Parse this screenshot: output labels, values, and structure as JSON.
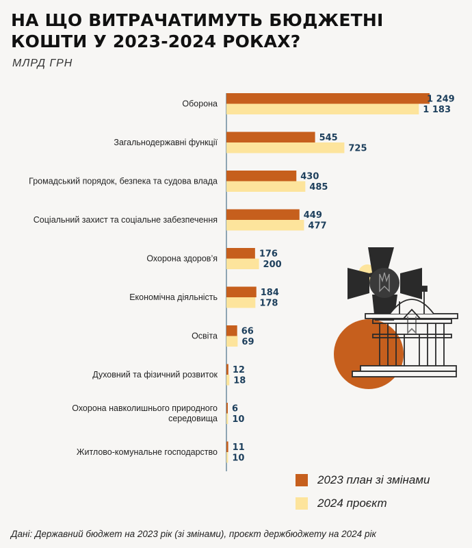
{
  "title": "НА ЩО ВИТРАЧАТИМУТЬ БЮДЖЕТНІ КОШТИ У 2023-2024 РОКАХ?",
  "subtitle": "МЛРД ГРН",
  "source": "Дані: Державний бюджет на 2023 рік (зі змінами), проєкт держбюджету на 2024 рік",
  "colors": {
    "series_2023": "#c65f1d",
    "series_2024": "#fde49c",
    "value_text": "#1d3f5c"
  },
  "illustration": {
    "icons": [
      "cross-emblem-icon",
      "trident-icon",
      "parliament-building-icon"
    ]
  },
  "chart_data": {
    "type": "bar",
    "orientation": "horizontal",
    "categories": [
      "Оборона",
      "Загальнодержавні функції",
      "Громадський порядок, безпека та судова влада",
      "Соціальний захист та соціальне забезпечення",
      "Охорона здоров’я",
      "Економічна діяльність",
      "Освіта",
      "Духовний та фізичний розвиток",
      "Охорона навколишнього природного середовища",
      "Житлово-комунальне господарство"
    ],
    "category_label_lines": [
      [
        "Оборона"
      ],
      [
        "Загальнодержавні функції"
      ],
      [
        "Громадський порядок, безпека та судова влада"
      ],
      [
        "Соціальний захист та соціальне забезпечення"
      ],
      [
        "Охорона здоров’я"
      ],
      [
        "Економічна діяльність"
      ],
      [
        "Освіта"
      ],
      [
        "Духовний та фізичний розвиток"
      ],
      [
        "Охорона навколишнього природного",
        "середовища"
      ],
      [
        "Житлово-комунальне господарство"
      ]
    ],
    "series": [
      {
        "name": "2023 план зі змінами",
        "values": [
          1249,
          545,
          430,
          449,
          176,
          184,
          66,
          12,
          6,
          11
        ],
        "value_labels": [
          "1 249",
          "545",
          "430",
          "449",
          "176",
          "184",
          "66",
          "12",
          "6",
          "11"
        ]
      },
      {
        "name": "2024 проєкт",
        "values": [
          1183,
          725,
          485,
          477,
          200,
          178,
          69,
          18,
          10,
          10
        ],
        "value_labels": [
          "1 183",
          "725",
          "485",
          "477",
          "200",
          "178",
          "69",
          "18",
          "10",
          "10"
        ]
      }
    ],
    "xlim": [
      0,
      1249
    ],
    "grid": false,
    "legend_position": "bottom-right"
  }
}
